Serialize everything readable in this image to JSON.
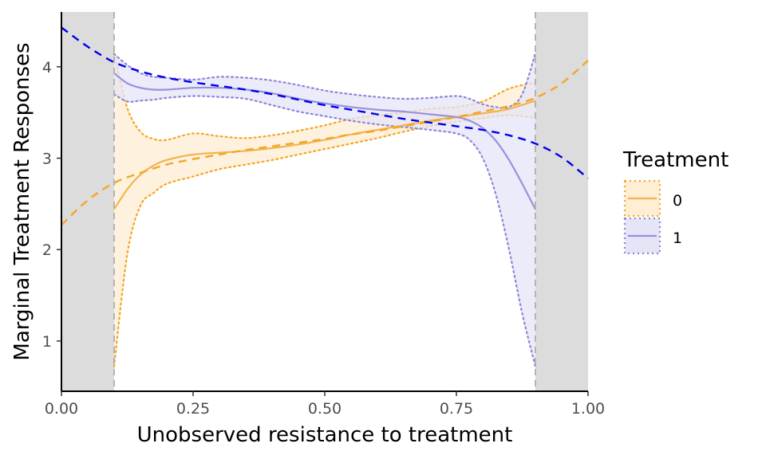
{
  "chart_data": {
    "type": "line",
    "xlabel": "Unobserved resistance to treatment",
    "ylabel": "Marginal Treatment Responses",
    "xlim": [
      0,
      1
    ],
    "ylim": [
      0.45,
      4.6
    ],
    "x_ticks": [
      0,
      0.25,
      0.5,
      0.75,
      1
    ],
    "x_tick_labels": [
      "0.00",
      "0.25",
      "0.50",
      "0.75",
      "1.00"
    ],
    "y_ticks": [
      1,
      2,
      3,
      4
    ],
    "y_tick_labels": [
      "1",
      "2",
      "3",
      "4"
    ],
    "shaded_regions": [
      {
        "x": [
          0,
          0.1
        ],
        "color": "#dcdcdc"
      },
      {
        "x": [
          0.9,
          1
        ],
        "color": "#dcdcdc"
      }
    ],
    "vlines": [
      {
        "x": 0.1,
        "style": "dashed",
        "color": "#b3b3b3"
      },
      {
        "x": 0.9,
        "style": "dashed",
        "color": "#b3b3b3"
      }
    ],
    "legend": {
      "title": "Treatment",
      "position": "right"
    },
    "series": [
      {
        "name": "0",
        "color": "#f5a623",
        "line_color": "#f0b450",
        "fill": "#fdeed4",
        "band_color": "#f5a623",
        "x": [
          0.1,
          0.125,
          0.15,
          0.175,
          0.2,
          0.25,
          0.3,
          0.35,
          0.4,
          0.45,
          0.5,
          0.55,
          0.6,
          0.65,
          0.7,
          0.75,
          0.8,
          0.85,
          0.9
        ],
        "y": [
          2.44,
          2.66,
          2.82,
          2.92,
          2.98,
          3.04,
          3.06,
          3.08,
          3.11,
          3.15,
          3.2,
          3.26,
          3.31,
          3.36,
          3.41,
          3.45,
          3.49,
          3.54,
          3.63
        ],
        "lower": [
          0.72,
          1.95,
          2.48,
          2.62,
          2.72,
          2.8,
          2.88,
          2.93,
          2.98,
          3.04,
          3.1,
          3.16,
          3.22,
          3.29,
          3.35,
          3.4,
          3.44,
          3.47,
          3.44
        ],
        "upper": [
          4.15,
          3.55,
          3.29,
          3.21,
          3.2,
          3.27,
          3.24,
          3.22,
          3.25,
          3.3,
          3.36,
          3.43,
          3.47,
          3.5,
          3.54,
          3.56,
          3.62,
          3.76,
          3.83
        ],
        "parametric": {
          "x": [
            0,
            0.05,
            0.1,
            0.15,
            0.2,
            0.25,
            0.3,
            0.35,
            0.4,
            0.45,
            0.5,
            0.55,
            0.6,
            0.65,
            0.7,
            0.75,
            0.8,
            0.85,
            0.9,
            0.95,
            1
          ],
          "y": [
            2.27,
            2.54,
            2.73,
            2.84,
            2.93,
            2.99,
            3.04,
            3.09,
            3.13,
            3.17,
            3.21,
            3.26,
            3.3,
            3.35,
            3.4,
            3.45,
            3.51,
            3.57,
            3.66,
            3.82,
            4.07
          ]
        }
      },
      {
        "name": "1",
        "color": "#8e86d8",
        "line_color": "#9891dc",
        "fill": "#e6e4f7",
        "band_color": "#8e86d8",
        "x": [
          0.1,
          0.125,
          0.15,
          0.175,
          0.2,
          0.25,
          0.3,
          0.35,
          0.4,
          0.45,
          0.5,
          0.55,
          0.6,
          0.65,
          0.7,
          0.75,
          0.775,
          0.8,
          0.825,
          0.85,
          0.875,
          0.9
        ],
        "y": [
          3.93,
          3.82,
          3.77,
          3.75,
          3.75,
          3.77,
          3.77,
          3.75,
          3.71,
          3.65,
          3.6,
          3.56,
          3.53,
          3.51,
          3.48,
          3.45,
          3.41,
          3.33,
          3.19,
          2.98,
          2.72,
          2.44
        ],
        "lower": [
          3.7,
          3.62,
          3.63,
          3.64,
          3.66,
          3.68,
          3.67,
          3.65,
          3.58,
          3.51,
          3.46,
          3.41,
          3.37,
          3.34,
          3.31,
          3.27,
          3.2,
          3.0,
          2.6,
          2.0,
          1.3,
          0.72
        ],
        "upper": [
          4.14,
          4.02,
          3.93,
          3.89,
          3.88,
          3.86,
          3.89,
          3.88,
          3.85,
          3.8,
          3.74,
          3.7,
          3.67,
          3.65,
          3.66,
          3.68,
          3.65,
          3.59,
          3.56,
          3.56,
          3.7,
          4.15
        ],
        "parametric": {
          "x": [
            0,
            0.05,
            0.1,
            0.15,
            0.2,
            0.25,
            0.3,
            0.35,
            0.4,
            0.45,
            0.5,
            0.55,
            0.6,
            0.65,
            0.7,
            0.75,
            0.8,
            0.85,
            0.9,
            0.95,
            1
          ],
          "y": [
            4.43,
            4.22,
            4.05,
            3.95,
            3.88,
            3.83,
            3.79,
            3.75,
            3.7,
            3.64,
            3.58,
            3.53,
            3.48,
            3.43,
            3.39,
            3.35,
            3.31,
            3.25,
            3.16,
            3.01,
            2.78
          ]
        },
        "parametric_color": "#0000ee"
      }
    ],
    "parametric_colors": {
      "0": "#f5a623",
      "1": "#0000ee"
    }
  }
}
